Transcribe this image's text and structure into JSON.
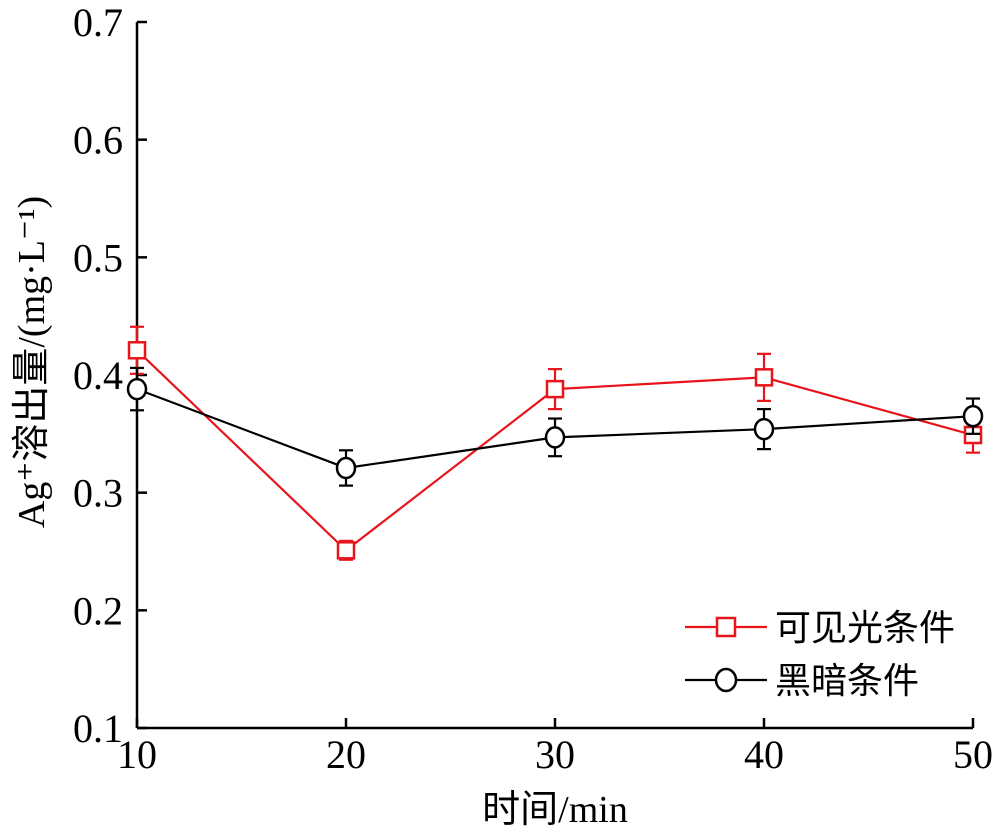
{
  "chart_data": {
    "type": "line",
    "xlabel": "时间/min",
    "ylabel": "Ag⁺溶出量/(mg·L⁻¹)",
    "xlim": [
      10,
      50
    ],
    "ylim": [
      0.1,
      0.7
    ],
    "x_ticks": [
      "10",
      "20",
      "30",
      "40",
      "50"
    ],
    "y_ticks": [
      "0.1",
      "0.2",
      "0.3",
      "0.4",
      "0.5",
      "0.6",
      "0.7"
    ],
    "legend_position": "bottom-right",
    "grid": false,
    "x": [
      10,
      20,
      30,
      40,
      50
    ],
    "series": [
      {
        "name": "可见光条件",
        "color": "#e8141b",
        "marker": "square",
        "values": [
          0.421,
          0.251,
          0.388,
          0.398,
          0.349
        ],
        "errors": [
          0.02,
          0.008,
          0.017,
          0.02,
          0.015
        ]
      },
      {
        "name": "黑暗条件",
        "color": "#000000",
        "marker": "circle",
        "values": [
          0.388,
          0.321,
          0.347,
          0.354,
          0.365
        ],
        "errors": [
          0.018,
          0.015,
          0.016,
          0.017,
          0.015
        ]
      }
    ]
  }
}
